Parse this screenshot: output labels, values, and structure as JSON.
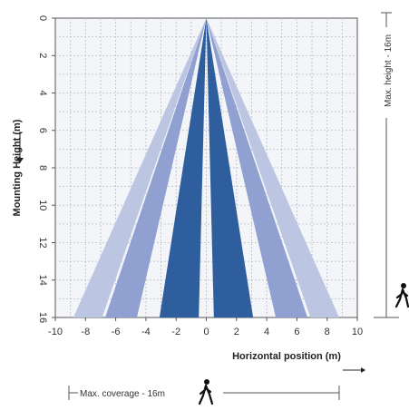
{
  "chart_data": {
    "type": "area",
    "ylabel": "Mounting Height (m)",
    "xlabel": "Horizontal position (m)",
    "x_ticks": [
      "-10",
      "-8",
      "-6",
      "-4",
      "-2",
      "0",
      "2",
      "4",
      "6",
      "8",
      "10"
    ],
    "y_ticks": [
      "0",
      "2",
      "4",
      "6",
      "8",
      "10",
      "12",
      "14",
      "16"
    ],
    "xlim": [
      -10,
      10
    ],
    "ylim": [
      0,
      16
    ],
    "apex": {
      "x": 0,
      "y": 0
    },
    "grid": true,
    "beams": [
      {
        "name": "outer-left",
        "base": [
          -8.8,
          -6.9
        ],
        "color": "#bcc6e3"
      },
      {
        "name": "mid-left",
        "base": [
          -6.7,
          -4.6
        ],
        "color": "#8fa0d1"
      },
      {
        "name": "inner-left",
        "base": [
          -3.1,
          -0.5
        ],
        "color": "#2f5e9e"
      },
      {
        "name": "inner-right",
        "base": [
          0.5,
          3.1
        ],
        "color": "#2f5e9e"
      },
      {
        "name": "mid-right",
        "base": [
          4.6,
          6.7
        ],
        "color": "#8fa0d1"
      },
      {
        "name": "outer-right",
        "base": [
          6.9,
          8.8
        ],
        "color": "#bcc6e3"
      }
    ]
  },
  "annotations": {
    "max_height": "Max. height - 16m",
    "max_coverage": "Max. coverage - 16m"
  },
  "icons": {
    "walking_person": "walking-person-icon"
  }
}
